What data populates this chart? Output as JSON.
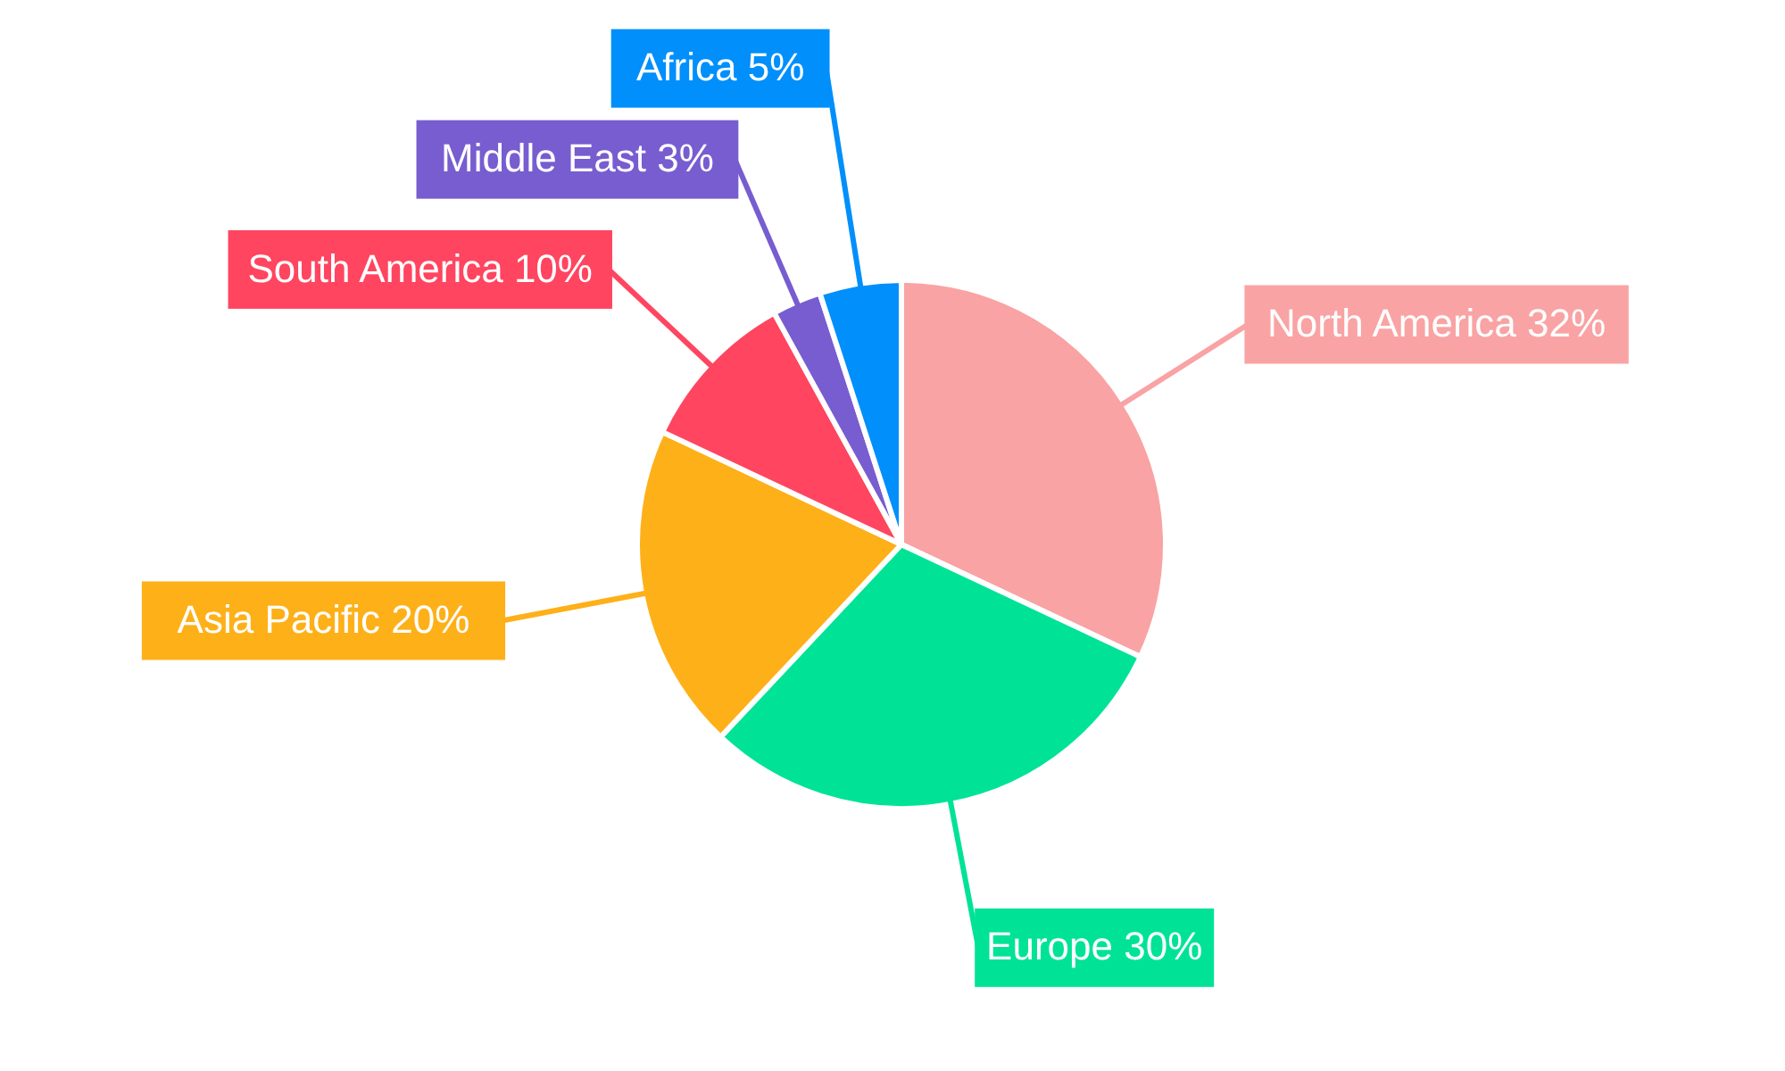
{
  "chart_data": {
    "type": "pie",
    "categories": [
      "North America",
      "Europe",
      "Asia Pacific",
      "South America",
      "Middle East",
      "Africa"
    ],
    "values": [
      32,
      30,
      20,
      10,
      3,
      5
    ],
    "value_labels": [
      "32%",
      "30%",
      "20%",
      "10%",
      "3%",
      "5%"
    ],
    "colors": [
      "#f9a3a4",
      "#00e396",
      "#feb019",
      "#ff4560",
      "#775dd0",
      "#008ffb"
    ],
    "legend": false
  }
}
